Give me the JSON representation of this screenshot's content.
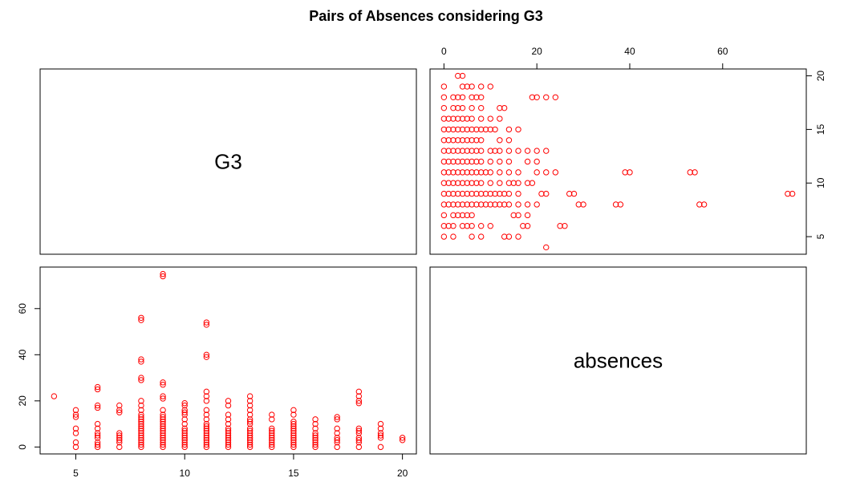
{
  "chart_data": {
    "type": "scatter",
    "title": "Pairs of Absences considering G3",
    "variables": [
      "G3",
      "absences"
    ],
    "point_color": "#ff0000",
    "grid": false,
    "panels": [
      {
        "position": "top-left",
        "kind": "label",
        "label": "G3"
      },
      {
        "position": "top-right",
        "kind": "scatter",
        "x_var": "absences",
        "y_var": "G3",
        "xlim": [
          0,
          75
        ],
        "ylim": [
          4,
          20
        ],
        "x_ticks": [
          0,
          20,
          40,
          60
        ],
        "x_tick_labels": [
          "0",
          "20",
          "40",
          "60"
        ],
        "x_axis_side": "top",
        "y_ticks": [
          5,
          10,
          15,
          20
        ],
        "y_tick_labels": [
          "5",
          "10",
          "15",
          "20"
        ],
        "y_axis_side": "right"
      },
      {
        "position": "bottom-left",
        "kind": "scatter",
        "x_var": "G3",
        "y_var": "absences",
        "xlim": [
          4,
          20
        ],
        "ylim": [
          0,
          75
        ],
        "x_ticks": [
          5,
          10,
          15,
          20
        ],
        "x_tick_labels": [
          "5",
          "10",
          "15",
          "20"
        ],
        "x_axis_side": "bottom",
        "y_ticks": [
          0,
          20,
          40,
          60
        ],
        "y_tick_labels": [
          "0",
          "20",
          "40",
          "60"
        ],
        "y_axis_side": "left"
      },
      {
        "position": "bottom-right",
        "kind": "label",
        "label": "absences"
      }
    ],
    "points_g3_absences": [
      [
        4,
        22
      ],
      [
        5,
        0
      ],
      [
        5,
        2
      ],
      [
        5,
        6
      ],
      [
        5,
        8
      ],
      [
        5,
        13
      ],
      [
        5,
        14
      ],
      [
        5,
        16
      ],
      [
        6,
        0
      ],
      [
        6,
        1
      ],
      [
        6,
        2
      ],
      [
        6,
        4
      ],
      [
        6,
        5
      ],
      [
        6,
        6
      ],
      [
        6,
        8
      ],
      [
        6,
        10
      ],
      [
        6,
        17
      ],
      [
        6,
        18
      ],
      [
        6,
        25
      ],
      [
        6,
        26
      ],
      [
        7,
        0
      ],
      [
        7,
        2
      ],
      [
        7,
        3
      ],
      [
        7,
        4
      ],
      [
        7,
        5
      ],
      [
        7,
        6
      ],
      [
        7,
        15
      ],
      [
        7,
        16
      ],
      [
        7,
        18
      ],
      [
        8,
        0
      ],
      [
        8,
        1
      ],
      [
        8,
        2
      ],
      [
        8,
        3
      ],
      [
        8,
        4
      ],
      [
        8,
        5
      ],
      [
        8,
        6
      ],
      [
        8,
        7
      ],
      [
        8,
        8
      ],
      [
        8,
        9
      ],
      [
        8,
        10
      ],
      [
        8,
        11
      ],
      [
        8,
        12
      ],
      [
        8,
        13
      ],
      [
        8,
        14
      ],
      [
        8,
        16
      ],
      [
        8,
        18
      ],
      [
        8,
        20
      ],
      [
        8,
        29
      ],
      [
        8,
        30
      ],
      [
        8,
        37
      ],
      [
        8,
        38
      ],
      [
        8,
        55
      ],
      [
        8,
        56
      ],
      [
        9,
        0
      ],
      [
        9,
        1
      ],
      [
        9,
        2
      ],
      [
        9,
        3
      ],
      [
        9,
        4
      ],
      [
        9,
        5
      ],
      [
        9,
        6
      ],
      [
        9,
        7
      ],
      [
        9,
        8
      ],
      [
        9,
        9
      ],
      [
        9,
        10
      ],
      [
        9,
        11
      ],
      [
        9,
        12
      ],
      [
        9,
        13
      ],
      [
        9,
        14
      ],
      [
        9,
        16
      ],
      [
        9,
        21
      ],
      [
        9,
        22
      ],
      [
        9,
        27
      ],
      [
        9,
        28
      ],
      [
        9,
        74
      ],
      [
        9,
        75
      ],
      [
        10,
        0
      ],
      [
        10,
        1
      ],
      [
        10,
        2
      ],
      [
        10,
        3
      ],
      [
        10,
        4
      ],
      [
        10,
        5
      ],
      [
        10,
        6
      ],
      [
        10,
        7
      ],
      [
        10,
        8
      ],
      [
        10,
        10
      ],
      [
        10,
        12
      ],
      [
        10,
        14
      ],
      [
        10,
        15
      ],
      [
        10,
        16
      ],
      [
        10,
        18
      ],
      [
        10,
        19
      ],
      [
        11,
        0
      ],
      [
        11,
        1
      ],
      [
        11,
        2
      ],
      [
        11,
        3
      ],
      [
        11,
        4
      ],
      [
        11,
        5
      ],
      [
        11,
        6
      ],
      [
        11,
        7
      ],
      [
        11,
        8
      ],
      [
        11,
        9
      ],
      [
        11,
        10
      ],
      [
        11,
        12
      ],
      [
        11,
        14
      ],
      [
        11,
        16
      ],
      [
        11,
        20
      ],
      [
        11,
        22
      ],
      [
        11,
        24
      ],
      [
        11,
        39
      ],
      [
        11,
        40
      ],
      [
        11,
        53
      ],
      [
        11,
        54
      ],
      [
        12,
        0
      ],
      [
        12,
        1
      ],
      [
        12,
        2
      ],
      [
        12,
        3
      ],
      [
        12,
        4
      ],
      [
        12,
        5
      ],
      [
        12,
        6
      ],
      [
        12,
        7
      ],
      [
        12,
        8
      ],
      [
        12,
        10
      ],
      [
        12,
        12
      ],
      [
        12,
        14
      ],
      [
        12,
        18
      ],
      [
        12,
        20
      ],
      [
        13,
        0
      ],
      [
        13,
        1
      ],
      [
        13,
        2
      ],
      [
        13,
        3
      ],
      [
        13,
        4
      ],
      [
        13,
        5
      ],
      [
        13,
        6
      ],
      [
        13,
        7
      ],
      [
        13,
        8
      ],
      [
        13,
        10
      ],
      [
        13,
        11
      ],
      [
        13,
        12
      ],
      [
        13,
        14
      ],
      [
        13,
        16
      ],
      [
        13,
        18
      ],
      [
        13,
        20
      ],
      [
        13,
        22
      ],
      [
        14,
        0
      ],
      [
        14,
        1
      ],
      [
        14,
        2
      ],
      [
        14,
        3
      ],
      [
        14,
        4
      ],
      [
        14,
        5
      ],
      [
        14,
        6
      ],
      [
        14,
        7
      ],
      [
        14,
        8
      ],
      [
        14,
        12
      ],
      [
        14,
        14
      ],
      [
        15,
        0
      ],
      [
        15,
        1
      ],
      [
        15,
        2
      ],
      [
        15,
        3
      ],
      [
        15,
        4
      ],
      [
        15,
        5
      ],
      [
        15,
        6
      ],
      [
        15,
        7
      ],
      [
        15,
        8
      ],
      [
        15,
        9
      ],
      [
        15,
        10
      ],
      [
        15,
        11
      ],
      [
        15,
        14
      ],
      [
        15,
        16
      ],
      [
        16,
        0
      ],
      [
        16,
        1
      ],
      [
        16,
        2
      ],
      [
        16,
        3
      ],
      [
        16,
        4
      ],
      [
        16,
        5
      ],
      [
        16,
        6
      ],
      [
        16,
        8
      ],
      [
        16,
        10
      ],
      [
        16,
        12
      ],
      [
        17,
        0
      ],
      [
        17,
        2
      ],
      [
        17,
        3
      ],
      [
        17,
        4
      ],
      [
        17,
        6
      ],
      [
        17,
        8
      ],
      [
        17,
        12
      ],
      [
        17,
        13
      ],
      [
        18,
        0
      ],
      [
        18,
        2
      ],
      [
        18,
        3
      ],
      [
        18,
        4
      ],
      [
        18,
        6
      ],
      [
        18,
        7
      ],
      [
        18,
        8
      ],
      [
        18,
        19
      ],
      [
        18,
        20
      ],
      [
        18,
        22
      ],
      [
        18,
        24
      ],
      [
        19,
        0
      ],
      [
        19,
        4
      ],
      [
        19,
        5
      ],
      [
        19,
        6
      ],
      [
        19,
        8
      ],
      [
        19,
        10
      ],
      [
        20,
        3
      ],
      [
        20,
        4
      ]
    ]
  }
}
